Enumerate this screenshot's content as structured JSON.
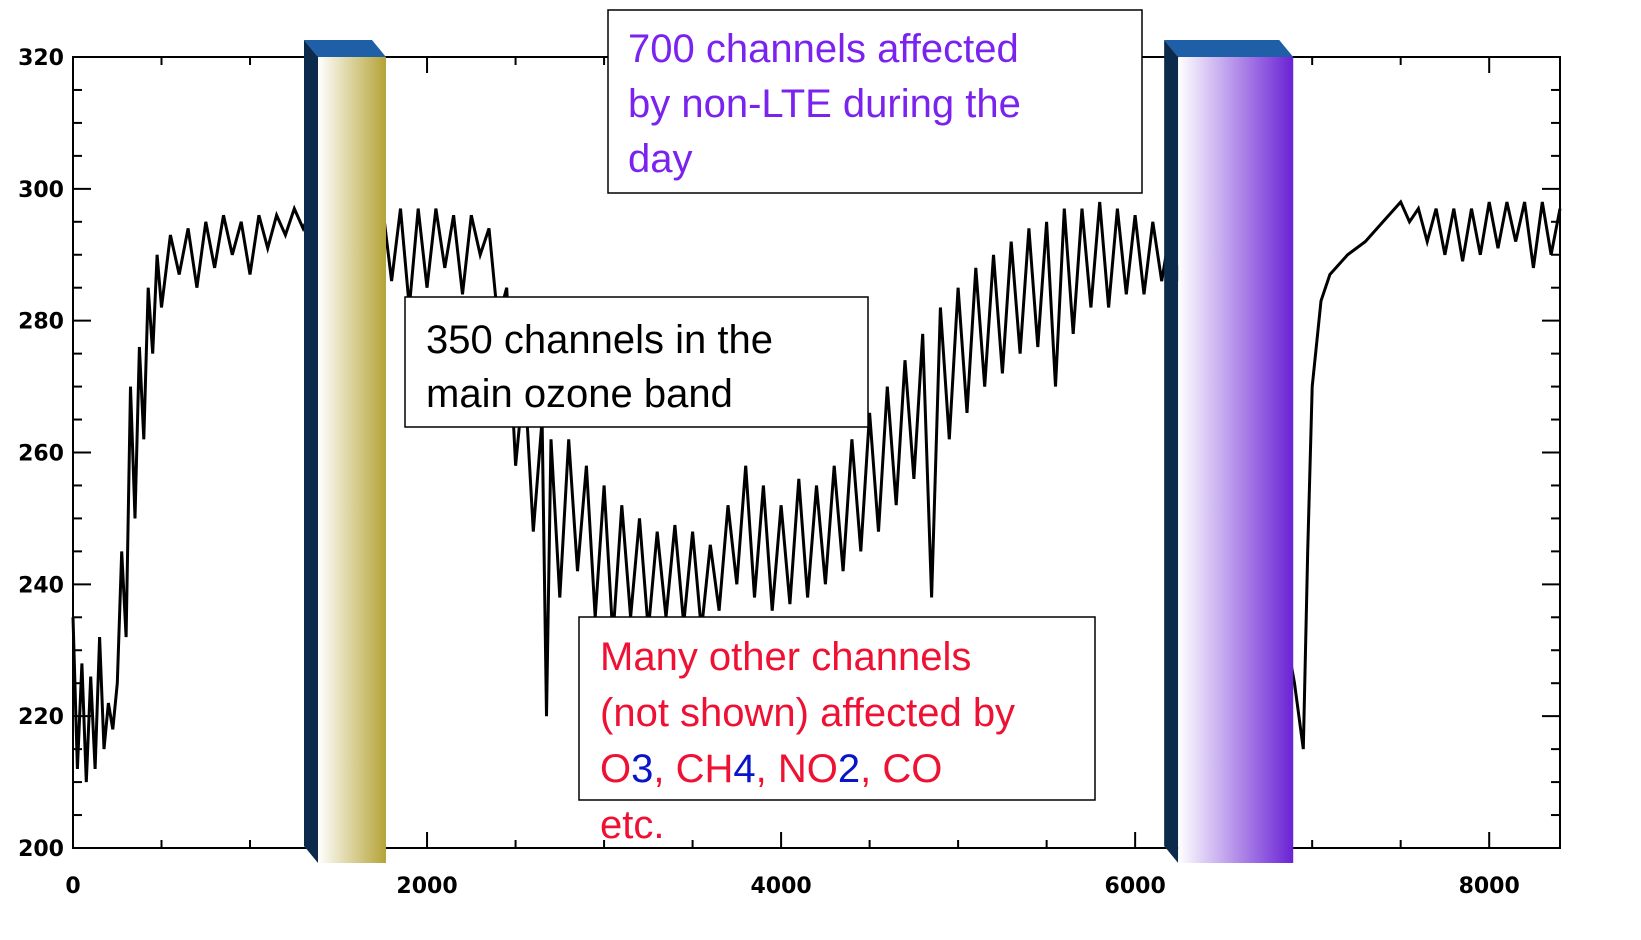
{
  "chart_data": {
    "type": "line",
    "xlim": [
      0,
      8400
    ],
    "ylim": [
      200,
      320
    ],
    "xticks": [
      0,
      2000,
      4000,
      6000,
      8000
    ],
    "yticks": [
      200,
      220,
      240,
      260,
      280,
      300,
      320
    ],
    "xminorticks": [
      500,
      1000,
      1500,
      2500,
      3000,
      3500,
      4500,
      5000,
      5500,
      6500,
      7000,
      7500
    ],
    "yminorticks": [
      205,
      210,
      215,
      225,
      230,
      235,
      245,
      250,
      255,
      265,
      270,
      275,
      285,
      290,
      295,
      305,
      310,
      315
    ],
    "series": [
      {
        "color": "#000000",
        "x": [
          0,
          25,
          50,
          75,
          100,
          125,
          150,
          175,
          200,
          225,
          250,
          275,
          300,
          325,
          350,
          375,
          400,
          425,
          450,
          475,
          500,
          550,
          600,
          650,
          700,
          750,
          800,
          850,
          900,
          950,
          1000,
          1050,
          1100,
          1150,
          1200,
          1250,
          1300,
          1350,
          1400,
          1450,
          1500,
          1550,
          1600,
          1650,
          1700,
          1750,
          1800,
          1850,
          1900,
          1950,
          2000,
          2050,
          2100,
          2150,
          2200,
          2250,
          2300,
          2350,
          2400,
          2450,
          2500,
          2550,
          2600,
          2650,
          2675,
          2700,
          2750,
          2800,
          2850,
          2900,
          2950,
          3000,
          3050,
          3100,
          3150,
          3200,
          3250,
          3300,
          3350,
          3400,
          3450,
          3500,
          3550,
          3600,
          3650,
          3700,
          3750,
          3800,
          3850,
          3900,
          3950,
          4000,
          4050,
          4100,
          4150,
          4200,
          4250,
          4300,
          4350,
          4400,
          4450,
          4500,
          4550,
          4600,
          4650,
          4700,
          4750,
          4800,
          4850,
          4900,
          4950,
          5000,
          5050,
          5100,
          5150,
          5200,
          5250,
          5300,
          5350,
          5400,
          5450,
          5500,
          5550,
          5600,
          5650,
          5700,
          5750,
          5800,
          5850,
          5900,
          5950,
          6000,
          6050,
          6100,
          6150,
          6200,
          6250,
          6300,
          6400,
          6500,
          6600,
          6700,
          6800,
          6900,
          6950,
          6975,
          7000,
          7050,
          7100,
          7200,
          7300,
          7400,
          7500,
          7550,
          7600,
          7650,
          7700,
          7750,
          7800,
          7850,
          7900,
          7950,
          8000,
          8050,
          8100,
          8150,
          8200,
          8250,
          8300,
          8350,
          8400
        ],
        "values": [
          235,
          212,
          228,
          210,
          226,
          212,
          232,
          215,
          222,
          218,
          225,
          245,
          232,
          270,
          250,
          276,
          262,
          285,
          275,
          290,
          282,
          293,
          287,
          294,
          285,
          295,
          288,
          296,
          290,
          295,
          287,
          296,
          291,
          296,
          293,
          297,
          294,
          297,
          295,
          297,
          294,
          297,
          294,
          297,
          292,
          297,
          286,
          297,
          282,
          297,
          285,
          297,
          288,
          296,
          284,
          296,
          290,
          294,
          280,
          285,
          258,
          272,
          248,
          265,
          220,
          262,
          238,
          262,
          242,
          258,
          235,
          255,
          232,
          252,
          235,
          250,
          233,
          248,
          235,
          249,
          234,
          248,
          233,
          246,
          236,
          252,
          240,
          258,
          238,
          255,
          236,
          252,
          237,
          256,
          238,
          255,
          240,
          258,
          242,
          262,
          245,
          266,
          248,
          270,
          252,
          274,
          256,
          278,
          238,
          282,
          262,
          285,
          266,
          288,
          270,
          290,
          272,
          292,
          275,
          294,
          276,
          295,
          270,
          297,
          278,
          297,
          282,
          298,
          282,
          297,
          284,
          296,
          284,
          295,
          286,
          294,
          286,
          292,
          290,
          285,
          270,
          255,
          240,
          225,
          215,
          245,
          270,
          283,
          287,
          290,
          292,
          295,
          298,
          295,
          297,
          292,
          297,
          290,
          297,
          289,
          297,
          290,
          298,
          291,
          298,
          292,
          298,
          288,
          298,
          290,
          297
        ]
      }
    ],
    "highlights": [
      {
        "xlim": [
          1384,
          1768
        ],
        "color": "#b5a336"
      },
      {
        "xlim": [
          6243,
          6893
        ],
        "color": "#6a22d4"
      }
    ],
    "annotations": [
      {
        "color": "#7a22ee",
        "lines": [
          "700 channels affected",
          "by non-LTE during the",
          "day"
        ]
      },
      {
        "color": "#000000",
        "lines": [
          "350 channels in the",
          "main ozone band"
        ]
      },
      {
        "color": "#ee1133",
        "lines": [
          [
            {
              "text": "Many other channels"
            }
          ],
          [
            {
              "text": "(not shown) affected by"
            }
          ],
          [
            {
              "text": "O"
            },
            {
              "text": "3",
              "color": "#0a14c8"
            },
            {
              "text": ", CH"
            },
            {
              "text": "4",
              "color": "#0a14c8"
            },
            {
              "text": ", NO"
            },
            {
              "text": "2",
              "color": "#0a14c8"
            },
            {
              "text": ", CO"
            }
          ],
          [
            {
              "text": "etc."
            }
          ]
        ]
      }
    ]
  }
}
